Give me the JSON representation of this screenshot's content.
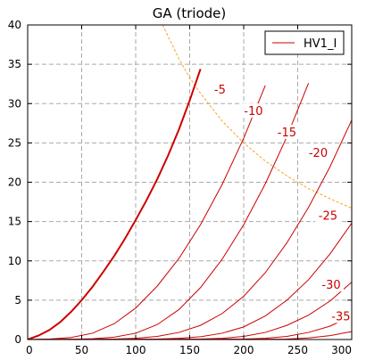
{
  "chart_data": {
    "type": "line",
    "title": "GA (triode)",
    "xlabel": "",
    "ylabel": "",
    "xlim": [
      0,
      300
    ],
    "ylim": [
      0,
      40
    ],
    "xticks": [
      0,
      50,
      100,
      150,
      200,
      250,
      300
    ],
    "yticks": [
      0,
      5,
      10,
      15,
      20,
      25,
      30,
      35,
      40
    ],
    "grid": true,
    "legend": {
      "placement": "top-right",
      "entries": [
        "HV1_I"
      ]
    },
    "colors": {
      "curve": "#cc0000",
      "dissipation": "#f5a623",
      "grid": "#aaaaaa",
      "axis": "#000000",
      "label_bg": "#ffffff"
    },
    "series": [
      {
        "name": "HV1_I",
        "grid_voltage": 0,
        "label": "",
        "x": [
          0,
          10,
          20,
          30,
          40,
          50,
          60,
          70,
          80,
          90,
          100,
          110,
          120,
          130,
          140,
          150,
          160
        ],
        "y": [
          0,
          0.5,
          1.2,
          2.2,
          3.5,
          5.0,
          6.7,
          8.6,
          10.6,
          12.8,
          15.2,
          17.7,
          20.4,
          23.4,
          26.7,
          30.4,
          34.4
        ]
      },
      {
        "name": "",
        "grid_voltage": -5,
        "label": "-5",
        "x": [
          0,
          20,
          40,
          60,
          80,
          100,
          120,
          140,
          160,
          180,
          200,
          220
        ],
        "y": [
          0,
          0.05,
          0.25,
          0.8,
          2.0,
          4.0,
          6.8,
          10.3,
          14.6,
          19.7,
          25.6,
          32.3
        ]
      },
      {
        "name": "",
        "grid_voltage": -10,
        "label": "-10",
        "x": [
          0,
          40,
          60,
          80,
          100,
          120,
          140,
          160,
          180,
          200,
          220,
          240,
          260
        ],
        "y": [
          0,
          0.03,
          0.1,
          0.3,
          0.8,
          1.9,
          3.8,
          6.6,
          10.2,
          14.6,
          19.8,
          25.8,
          32.6
        ]
      },
      {
        "name": "",
        "grid_voltage": -15,
        "label": "-15",
        "x": [
          0,
          80,
          100,
          120,
          140,
          160,
          180,
          200,
          220,
          240,
          260,
          280,
          300
        ],
        "y": [
          0,
          0.05,
          0.15,
          0.4,
          0.9,
          1.8,
          3.3,
          5.5,
          8.5,
          12.3,
          16.8,
          22.0,
          27.9
        ]
      },
      {
        "name": "",
        "grid_voltage": -20,
        "label": "-20",
        "x": [
          0,
          120,
          140,
          160,
          180,
          200,
          220,
          240,
          260,
          280,
          300
        ],
        "y": [
          0,
          0.05,
          0.15,
          0.35,
          0.8,
          1.6,
          3.0,
          5.0,
          7.6,
          10.9,
          14.8
        ]
      },
      {
        "name": "",
        "grid_voltage": -25,
        "label": "-25",
        "x": [
          0,
          160,
          180,
          200,
          220,
          240,
          260,
          280,
          300
        ],
        "y": [
          0,
          0.05,
          0.15,
          0.4,
          0.9,
          1.8,
          3.1,
          4.9,
          7.3
        ]
      },
      {
        "name": "",
        "grid_voltage": -30,
        "label": "-30",
        "x": [
          0,
          200,
          220,
          240,
          260,
          280,
          300
        ],
        "y": [
          0,
          0.05,
          0.15,
          0.4,
          0.9,
          1.7,
          3.0
        ]
      },
      {
        "name": "",
        "grid_voltage": -35,
        "label": "-35",
        "x": [
          0,
          240,
          260,
          280,
          300
        ],
        "y": [
          0,
          0.05,
          0.2,
          0.5,
          1.0
        ]
      }
    ],
    "curve_labels": [
      {
        "text": "-5",
        "x": 178,
        "y": 31.7
      },
      {
        "text": "-10",
        "x": 209,
        "y": 29.0
      },
      {
        "text": "-15",
        "x": 240,
        "y": 26.3
      },
      {
        "text": "-20",
        "x": 269,
        "y": 23.7
      },
      {
        "text": "-25",
        "x": 278,
        "y": 15.7
      },
      {
        "text": "-30",
        "x": 281,
        "y": 6.9
      },
      {
        "text": "-35",
        "x": 290,
        "y": 2.9
      }
    ],
    "dissipation_curve": {
      "x": [
        125,
        140,
        150,
        160,
        180,
        200,
        220,
        240,
        260,
        280,
        300
      ],
      "y": [
        40,
        35.7,
        33.3,
        31.3,
        27.8,
        25,
        22.7,
        20.8,
        19.2,
        17.9,
        16.7
      ]
    }
  }
}
